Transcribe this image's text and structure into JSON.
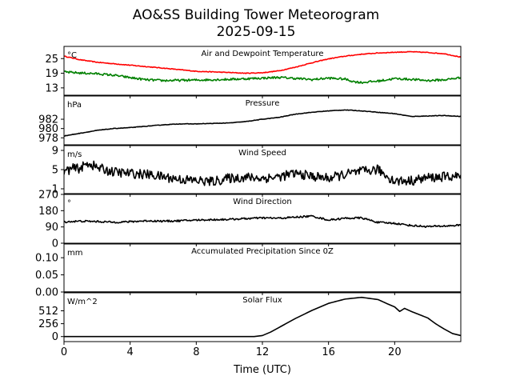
{
  "figure": {
    "title_line1": "AO&SS Building Tower Meteorogram",
    "title_line2": "2025-09-15",
    "xlabel": "Time (UTC)",
    "xlim": [
      0,
      24
    ],
    "xticks": [
      0,
      4,
      8,
      12,
      16,
      20
    ],
    "xtick_labels": [
      "0",
      "4",
      "8",
      "12",
      "16",
      "20"
    ]
  },
  "chart_data": [
    {
      "type": "line",
      "title": "Air and Dewpoint Temperature",
      "unit": "°C",
      "ylim": [
        10,
        30
      ],
      "yticks": [
        13,
        19,
        25
      ],
      "ytick_labels": [
        "13",
        "19",
        "25"
      ],
      "noise": 0,
      "series": [
        {
          "name": "Air Temperature",
          "color": "#ff0000",
          "noise": 0.15,
          "x": [
            0,
            1,
            2,
            4,
            6,
            8,
            10,
            11,
            12,
            13,
            14,
            15,
            16,
            17,
            18,
            19,
            20,
            21,
            22,
            23,
            24
          ],
          "values": [
            26.0,
            24.5,
            23.5,
            22.3,
            21.1,
            19.8,
            19.3,
            19.0,
            19.2,
            20.0,
            21.5,
            23.3,
            24.9,
            26.0,
            26.8,
            27.3,
            27.6,
            27.8,
            27.5,
            27.0,
            25.6
          ]
        },
        {
          "name": "Dewpoint Temperature",
          "color": "#008000",
          "noise": 0.45,
          "x": [
            0,
            1,
            2,
            3,
            4,
            5,
            6,
            8,
            10,
            12,
            13,
            14,
            15,
            16,
            17,
            17.5,
            18,
            19,
            20,
            21,
            22,
            23,
            24
          ],
          "values": [
            19.5,
            19.1,
            18.8,
            18.2,
            17.2,
            16.3,
            16.0,
            16.2,
            16.5,
            17.0,
            17.3,
            16.9,
            16.4,
            17.0,
            16.6,
            15.6,
            15.2,
            15.8,
            16.8,
            16.5,
            16.0,
            16.3,
            17.2
          ]
        }
      ]
    },
    {
      "type": "line",
      "title": "Pressure",
      "unit": "hPa",
      "ylim": [
        976.5,
        987.0
      ],
      "yticks": [
        978,
        980,
        982
      ],
      "ytick_labels": [
        "978",
        "980",
        "982"
      ],
      "noise": 0.05,
      "series": [
        {
          "name": "Pressure",
          "color": "#000000",
          "x": [
            0,
            1,
            2,
            3,
            4,
            5,
            6,
            7,
            8,
            9,
            10,
            11,
            12,
            13,
            14,
            15,
            16,
            17,
            18,
            19,
            20,
            21,
            22,
            23,
            24
          ],
          "values": [
            978.4,
            979.0,
            979.6,
            980.0,
            980.2,
            980.5,
            980.8,
            981.0,
            981.0,
            981.1,
            981.2,
            981.5,
            982.0,
            982.4,
            983.1,
            983.5,
            983.8,
            984.0,
            983.8,
            983.5,
            983.2,
            982.6,
            982.7,
            982.8,
            982.6
          ]
        }
      ]
    },
    {
      "type": "line",
      "title": "Wind Speed",
      "unit": "m/s",
      "ylim": [
        0,
        10
      ],
      "yticks": [
        1,
        5,
        9
      ],
      "ytick_labels": [
        "1",
        "5",
        "9"
      ],
      "noise": 1.0,
      "series": [
        {
          "name": "Wind Speed",
          "color": "#000000",
          "x": [
            0,
            0.5,
            1,
            1.5,
            2,
            3,
            4,
            5,
            6,
            7,
            8,
            9,
            10,
            11,
            12,
            13,
            14,
            15,
            16,
            17,
            18,
            19,
            19.5,
            20,
            21,
            22,
            23,
            24
          ],
          "values": [
            4.6,
            5.2,
            5.3,
            6.4,
            5.4,
            4.5,
            4.2,
            4.0,
            3.5,
            3.0,
            2.7,
            2.5,
            3.2,
            3.4,
            3.2,
            3.5,
            4.2,
            3.6,
            3.2,
            4.0,
            4.6,
            5.0,
            3.7,
            2.6,
            2.7,
            3.3,
            3.5,
            3.6
          ]
        }
      ]
    },
    {
      "type": "line",
      "title": "Wind Direction",
      "unit": "°",
      "ylim": [
        0,
        270
      ],
      "yticks": [
        0,
        90,
        180,
        270
      ],
      "ytick_labels": [
        "0",
        "90",
        "180",
        "270"
      ],
      "noise": 5,
      "series": [
        {
          "name": "Wind Direction",
          "color": "#000000",
          "x": [
            0,
            1,
            2,
            3,
            4,
            5,
            6,
            7,
            8,
            9,
            10,
            11,
            12,
            13,
            14,
            15,
            16,
            17,
            18,
            19,
            20,
            21,
            22,
            23,
            24
          ],
          "values": [
            118,
            122,
            120,
            116,
            119,
            124,
            122,
            124,
            128,
            130,
            132,
            136,
            140,
            138,
            144,
            150,
            128,
            138,
            140,
            115,
            110,
            98,
            92,
            95,
            100
          ]
        }
      ]
    },
    {
      "type": "line",
      "title": "Accumulated Precipitation Since 0Z",
      "unit": "mm",
      "ylim": [
        0,
        0.14
      ],
      "yticks": [
        0.0,
        0.05,
        0.1
      ],
      "ytick_labels": [
        "0.00",
        "0.05",
        "0.10"
      ],
      "noise": 0,
      "series": [
        {
          "name": "Accumulated Precipitation",
          "color": "#000000",
          "x": [
            0,
            24
          ],
          "values": [
            0,
            0
          ]
        }
      ]
    },
    {
      "type": "line",
      "title": "Solar Flux",
      "unit": "W/m^2",
      "ylim": [
        -100,
        870
      ],
      "yticks": [
        0,
        256,
        512
      ],
      "ytick_labels": [
        "0",
        "256",
        "512"
      ],
      "noise": 0,
      "series": [
        {
          "name": "Solar Flux",
          "color": "#000000",
          "x": [
            0,
            11.5,
            12,
            12.5,
            13,
            14,
            15,
            16,
            17,
            18,
            19,
            19.5,
            20,
            20.3,
            20.6,
            21,
            22,
            22.5,
            23,
            23.5,
            24
          ],
          "values": [
            0,
            0,
            20,
            90,
            180,
            360,
            520,
            660,
            745,
            780,
            735,
            660,
            590,
            500,
            560,
            500,
            370,
            250,
            150,
            60,
            20
          ]
        }
      ]
    }
  ]
}
